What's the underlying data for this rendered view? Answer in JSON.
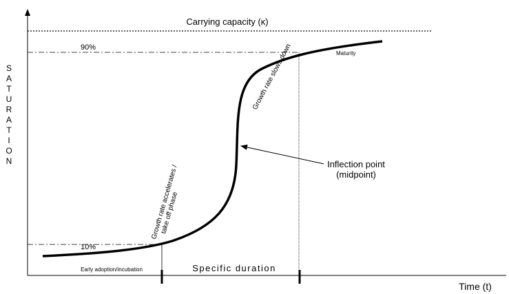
{
  "labels": {
    "carrying_capacity": "Carrying capacity (κ)",
    "p90": "90%",
    "p10": "10%",
    "maturity": "Maturity",
    "slows": "Growth rate slows down",
    "inflection": [
      "Inflection point",
      "(midpoint)"
    ],
    "accelerates": [
      "Growth rate accelerates /",
      "take off phase"
    ],
    "early": "Early adoption/incubation",
    "duration": "Specific duration",
    "time": "Time (t)",
    "y_axis": "SATURATION"
  }
}
